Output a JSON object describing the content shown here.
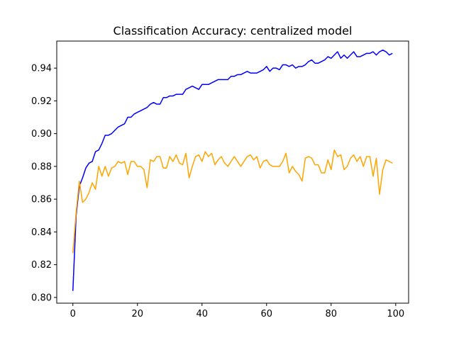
{
  "chart_data": {
    "type": "line",
    "title": "Classification Accuracy: centralized model",
    "xlabel": "",
    "ylabel": "",
    "xlim": [
      -5,
      104
    ],
    "ylim": [
      0.7965,
      0.9565
    ],
    "xticks": [
      0,
      20,
      40,
      60,
      80,
      100
    ],
    "yticks": [
      0.8,
      0.82,
      0.84,
      0.86,
      0.88,
      0.9,
      0.92,
      0.94
    ],
    "xtick_labels": [
      "0",
      "20",
      "40",
      "60",
      "80",
      "100"
    ],
    "ytick_labels": [
      "0.80",
      "0.82",
      "0.84",
      "0.86",
      "0.88",
      "0.90",
      "0.92",
      "0.94"
    ],
    "grid": false,
    "legend": "none",
    "x": [
      0,
      1,
      2,
      3,
      4,
      5,
      6,
      7,
      8,
      9,
      10,
      11,
      12,
      13,
      14,
      15,
      16,
      17,
      18,
      19,
      20,
      21,
      22,
      23,
      24,
      25,
      26,
      27,
      28,
      29,
      30,
      31,
      32,
      33,
      34,
      35,
      36,
      37,
      38,
      39,
      40,
      41,
      42,
      43,
      44,
      45,
      46,
      47,
      48,
      49,
      50,
      51,
      52,
      53,
      54,
      55,
      56,
      57,
      58,
      59,
      60,
      61,
      62,
      63,
      64,
      65,
      66,
      67,
      68,
      69,
      70,
      71,
      72,
      73,
      74,
      75,
      76,
      77,
      78,
      79,
      80,
      81,
      82,
      83,
      84,
      85,
      86,
      87,
      88,
      89,
      90,
      91,
      92,
      93,
      94,
      95,
      96,
      97,
      98,
      99
    ],
    "series": [
      {
        "color": "#0000ff",
        "values": [
          0.804,
          0.85,
          0.868,
          0.873,
          0.879,
          0.882,
          0.883,
          0.889,
          0.89,
          0.894,
          0.899,
          0.899,
          0.9,
          0.902,
          0.904,
          0.905,
          0.906,
          0.91,
          0.91,
          0.912,
          0.913,
          0.914,
          0.915,
          0.916,
          0.918,
          0.919,
          0.918,
          0.918,
          0.922,
          0.922,
          0.923,
          0.923,
          0.924,
          0.924,
          0.924,
          0.927,
          0.928,
          0.929,
          0.928,
          0.927,
          0.93,
          0.93,
          0.93,
          0.931,
          0.932,
          0.933,
          0.933,
          0.933,
          0.933,
          0.935,
          0.935,
          0.936,
          0.936,
          0.937,
          0.938,
          0.937,
          0.937,
          0.937,
          0.938,
          0.939,
          0.941,
          0.938,
          0.94,
          0.94,
          0.939,
          0.942,
          0.942,
          0.941,
          0.942,
          0.94,
          0.941,
          0.941,
          0.942,
          0.944,
          0.945,
          0.943,
          0.943,
          0.944,
          0.945,
          0.947,
          0.946,
          0.948,
          0.95,
          0.946,
          0.948,
          0.946,
          0.948,
          0.95,
          0.947,
          0.947,
          0.948,
          0.949,
          0.949,
          0.95,
          0.948,
          0.95,
          0.951,
          0.95,
          0.948,
          0.949
        ]
      },
      {
        "color": "#ffa500",
        "values": [
          0.827,
          0.852,
          0.871,
          0.858,
          0.86,
          0.864,
          0.87,
          0.866,
          0.88,
          0.874,
          0.88,
          0.874,
          0.879,
          0.88,
          0.883,
          0.882,
          0.883,
          0.875,
          0.883,
          0.883,
          0.88,
          0.88,
          0.878,
          0.867,
          0.884,
          0.883,
          0.886,
          0.886,
          0.879,
          0.879,
          0.886,
          0.883,
          0.887,
          0.882,
          0.881,
          0.888,
          0.873,
          0.88,
          0.886,
          0.887,
          0.883,
          0.889,
          0.886,
          0.888,
          0.881,
          0.884,
          0.886,
          0.882,
          0.88,
          0.883,
          0.886,
          0.883,
          0.88,
          0.883,
          0.886,
          0.887,
          0.884,
          0.886,
          0.879,
          0.883,
          0.884,
          0.881,
          0.88,
          0.88,
          0.88,
          0.883,
          0.888,
          0.876,
          0.88,
          0.877,
          0.875,
          0.871,
          0.885,
          0.886,
          0.885,
          0.881,
          0.881,
          0.876,
          0.876,
          0.884,
          0.878,
          0.89,
          0.886,
          0.887,
          0.878,
          0.88,
          0.885,
          0.887,
          0.883,
          0.886,
          0.88,
          0.886,
          0.886,
          0.874,
          0.885,
          0.863,
          0.878,
          0.884,
          0.883,
          0.882
        ]
      }
    ]
  }
}
